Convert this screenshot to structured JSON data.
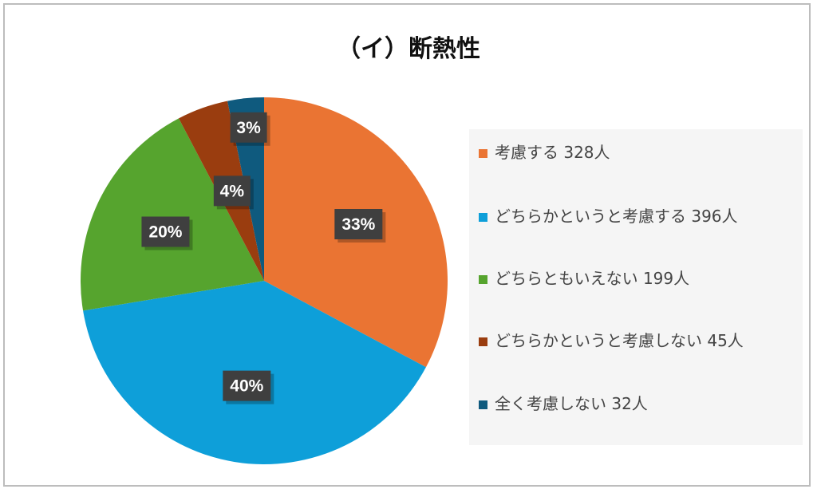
{
  "chart_data": {
    "type": "pie",
    "title": "（イ）断熱性",
    "slices": [
      {
        "label": "考慮する 328人",
        "value": 328,
        "percent_label": "33%",
        "color": "#ea7433"
      },
      {
        "label": "どちらかというと考慮する 396人",
        "value": 396,
        "percent_label": "40%",
        "color": "#0e9fd9"
      },
      {
        "label": "どちらともいえない 199人",
        "value": 199,
        "percent_label": "20%",
        "color": "#56a42e"
      },
      {
        "label": "どちらかというと考慮しない 45人",
        "value": 45,
        "percent_label": "4%",
        "color": "#9a3d0f"
      },
      {
        "label": "全く考慮しない 32人",
        "value": 32,
        "percent_label": "3%",
        "color": "#0f5a7e"
      }
    ],
    "legend_position": "right"
  }
}
